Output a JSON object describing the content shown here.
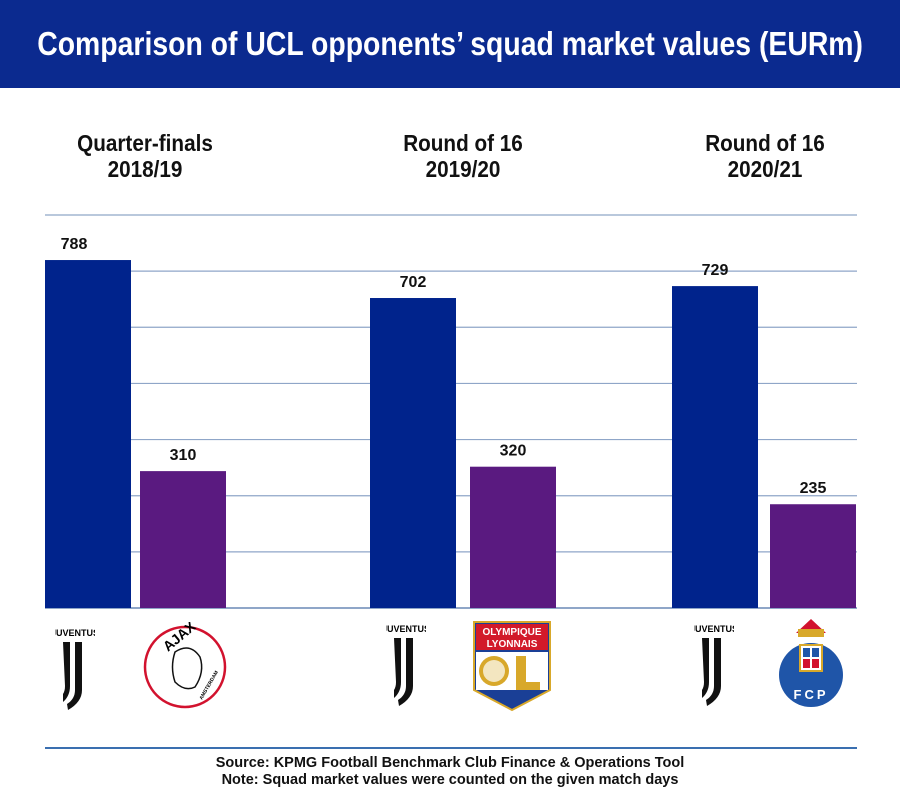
{
  "title": "Comparison of UCL opponents’ squad market values (EURm)",
  "chart_data": {
    "type": "bar",
    "title": "Comparison of UCL opponents’ squad market values (EURm)",
    "groups": [
      {
        "label_line1": "Quarter-finals",
        "label_line2": "2018/19",
        "teams": [
          "Juventus",
          "Ajax"
        ],
        "values": [
          788,
          310
        ]
      },
      {
        "label_line1": "Round of 16",
        "label_line2": "2019/20",
        "teams": [
          "Juventus",
          "Olympique Lyonnais"
        ],
        "values": [
          702,
          320
        ]
      },
      {
        "label_line1": "Round of 16",
        "label_line2": "2020/21",
        "teams": [
          "Juventus",
          "FC Porto"
        ],
        "values": [
          729,
          235
        ]
      }
    ],
    "ylim": [
      0,
      890
    ],
    "grid": true,
    "xlabel": "",
    "ylabel": "",
    "colors": {
      "juventus": "#00238c",
      "opponent": "#5a1a80",
      "grid": "#8fa6c8"
    }
  },
  "logos": {
    "juventus": "JUVENTUS",
    "ajax": "AJAX",
    "ajax_sub": "AMSTERDAM",
    "lyon_line1": "OLYMPIQUE",
    "lyon_line2": "LYONNAIS",
    "lyon_mono": "OL",
    "porto": "FCP"
  },
  "footer": {
    "source": "Source: KPMG Football Benchmark Club Finance & Operations Tool",
    "note": "Note: Squad market values were counted on the given match days"
  }
}
